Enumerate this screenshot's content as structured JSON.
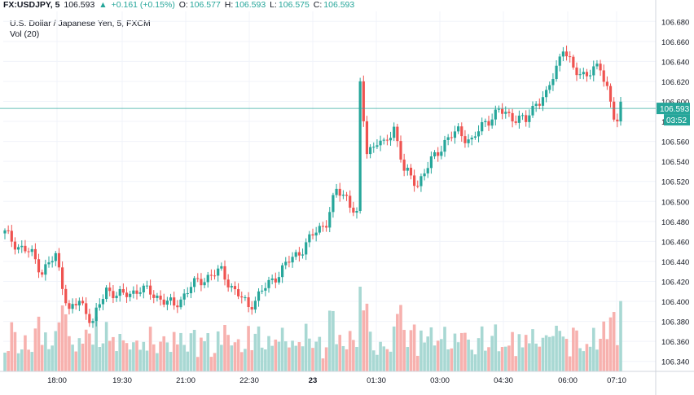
{
  "header": {
    "symbol": "FX:USDJPY, 5",
    "last": "106.593",
    "arrow": "▲",
    "change": "+0.161 (+0.15%)",
    "o_label": "O:",
    "o_value": "106.577",
    "h_label": "H:",
    "h_value": "106.593",
    "l_label": "L:",
    "l_value": "106.575",
    "c_label": "C:",
    "c_value": "106.593"
  },
  "subtitle": "U.S. Dollar / Japanese Yen, 5, FXCM",
  "volume_label": "Vol (20)",
  "price_tag": "106.593",
  "time_tag": "03:52",
  "chart_data": {
    "type": "candlestick",
    "title": "U.S. Dollar / Japanese Yen, 5, FXCM",
    "ylim": [
      106.33,
      106.69
    ],
    "y_ticks": [
      "106.680",
      "106.660",
      "106.640",
      "106.620",
      "106.600",
      "106.580",
      "106.560",
      "106.540",
      "106.520",
      "106.500",
      "106.480",
      "106.460",
      "106.440",
      "106.420",
      "106.400",
      "106.380",
      "106.360",
      "106.340"
    ],
    "x_ticks": [
      "18:00",
      "19:30",
      "21:00",
      "22:30",
      "23",
      "01:30",
      "03:00",
      "04:30",
      "06:00",
      "07:10"
    ],
    "last_price": 106.593,
    "colors": {
      "up": "#26a69a",
      "down": "#ef5350",
      "up_vol": "#a8d8d3",
      "down_vol": "#f7b1ae"
    },
    "anchors": [
      [
        0,
        106.468
      ],
      [
        4,
        106.455
      ],
      [
        8,
        106.447
      ],
      [
        11,
        106.43
      ],
      [
        15,
        106.445
      ],
      [
        19,
        106.39
      ],
      [
        22,
        106.4
      ],
      [
        26,
        106.38
      ],
      [
        30,
        106.412
      ],
      [
        35,
        106.405
      ],
      [
        40,
        106.413
      ],
      [
        45,
        106.405
      ],
      [
        50,
        106.395
      ],
      [
        55,
        106.415
      ],
      [
        60,
        106.425
      ],
      [
        64,
        106.43
      ],
      [
        68,
        106.41
      ],
      [
        72,
        106.395
      ],
      [
        76,
        106.41
      ],
      [
        80,
        106.425
      ],
      [
        84,
        106.44
      ],
      [
        88,
        106.453
      ],
      [
        92,
        106.47
      ],
      [
        95,
        106.48
      ],
      [
        98,
        106.51
      ],
      [
        101,
        106.505
      ],
      [
        104,
        106.485
      ],
      [
        105,
        106.615
      ],
      [
        107,
        106.55
      ],
      [
        110,
        106.56
      ],
      [
        112,
        106.555
      ],
      [
        115,
        106.575
      ],
      [
        118,
        106.53
      ],
      [
        122,
        106.518
      ],
      [
        126,
        106.54
      ],
      [
        130,
        106.56
      ],
      [
        134,
        106.57
      ],
      [
        138,
        106.56
      ],
      [
        142,
        106.58
      ],
      [
        146,
        106.59
      ],
      [
        150,
        106.585
      ],
      [
        154,
        106.58
      ],
      [
        157,
        106.6
      ],
      [
        160,
        106.605
      ],
      [
        165,
        106.655
      ],
      [
        168,
        106.63
      ],
      [
        172,
        106.628
      ],
      [
        176,
        106.633
      ],
      [
        178,
        106.615
      ],
      [
        180,
        106.585
      ],
      [
        181,
        106.578
      ],
      [
        182,
        106.593
      ]
    ],
    "volume_bars": 183
  }
}
